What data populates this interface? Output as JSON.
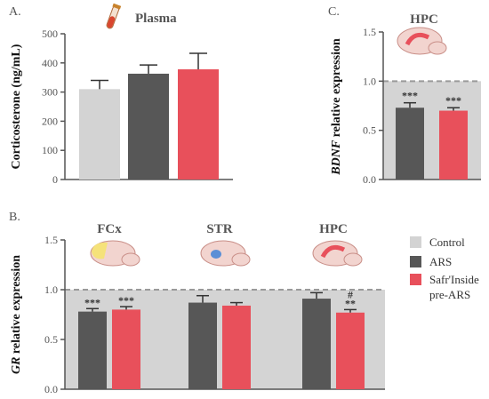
{
  "panels": {
    "a": {
      "letter": "A.",
      "region": "Plasma"
    },
    "b": {
      "letter": "B."
    },
    "c": {
      "letter": "C.",
      "region": "HPC"
    }
  },
  "legend": [
    {
      "label": "Control",
      "color": "#d3d3d3"
    },
    {
      "label": "ARS",
      "color": "#575757"
    },
    {
      "label": "Safr'Inside",
      "color": "#e8505b"
    },
    {
      "label": "pre-ARS",
      "color": "#e8505b"
    }
  ],
  "colors": {
    "control": "#d3d3d3",
    "ars": "#575757",
    "safr": "#e8505b",
    "gridline": "#9a9a9a",
    "shade": "#d4d4d4"
  },
  "chart_data": [
    {
      "id": "A",
      "type": "bar",
      "title": "",
      "ylabel": "Corticosterone (ng/mL)",
      "ylim": [
        0,
        500
      ],
      "yticks": [
        "0",
        "100",
        "200",
        "300",
        "400",
        "500"
      ],
      "categories": [
        "Control",
        "ARS",
        "Safr'Inside pre-ARS"
      ],
      "values": [
        310,
        363,
        378
      ],
      "errors": [
        30,
        30,
        55
      ],
      "colors": [
        "#d3d3d3",
        "#575757",
        "#e8505b"
      ]
    },
    {
      "id": "B",
      "type": "bar",
      "ylabel": "GR relative expression",
      "ylabel_italic": "GR",
      "ylabel_rest": " relative expression",
      "ylim": [
        0,
        1.5
      ],
      "yticks": [
        "0.0",
        "0.5",
        "1.0",
        "1.5"
      ],
      "reference_line": 1.0,
      "groups": [
        "FCx",
        "STR",
        "HPC"
      ],
      "series": [
        {
          "name": "ARS",
          "values": [
            0.78,
            0.87,
            0.91
          ],
          "errors": [
            0.03,
            0.07,
            0.06
          ],
          "color": "#575757"
        },
        {
          "name": "Safr'Inside pre-ARS",
          "values": [
            0.8,
            0.84,
            0.77
          ],
          "errors": [
            0.03,
            0.03,
            0.03
          ],
          "color": "#e8505b"
        }
      ],
      "annotations": [
        {
          "group": 0,
          "series": 0,
          "text": "***"
        },
        {
          "group": 0,
          "series": 1,
          "text": "***"
        },
        {
          "group": 2,
          "series": 1,
          "text": "**"
        },
        {
          "group": 2,
          "series": 1,
          "text": "#"
        }
      ]
    },
    {
      "id": "C",
      "type": "bar",
      "ylabel": "BDNF relative expression",
      "ylabel_italic": "BDNF",
      "ylabel_rest": " relative expression",
      "ylim": [
        0,
        1.5
      ],
      "yticks": [
        "0.0",
        "0.5",
        "1.0",
        "1.5"
      ],
      "reference_line": 1.0,
      "series": [
        {
          "name": "ARS",
          "values": [
            0.73
          ],
          "errors": [
            0.05
          ],
          "color": "#575757"
        },
        {
          "name": "Safr'Inside pre-ARS",
          "values": [
            0.7
          ],
          "errors": [
            0.03
          ],
          "color": "#e8505b"
        }
      ],
      "annotations": [
        {
          "series": 0,
          "text": "***"
        },
        {
          "series": 1,
          "text": "***"
        }
      ]
    }
  ]
}
